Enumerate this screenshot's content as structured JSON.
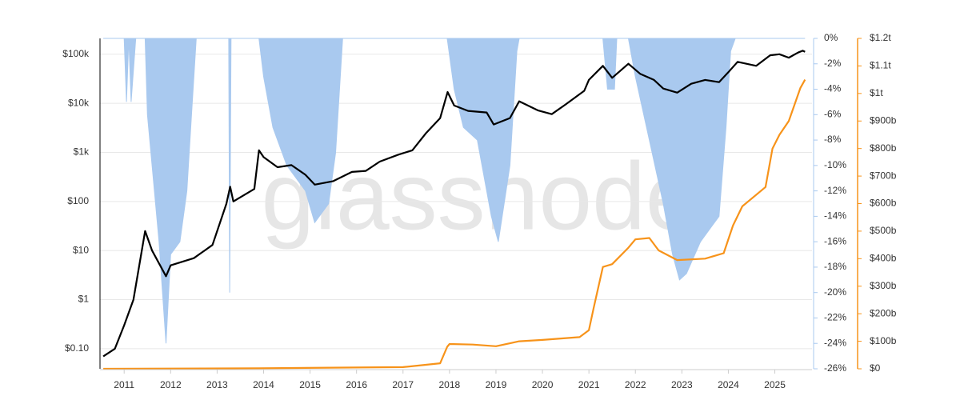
{
  "chart_data": {
    "type": "line",
    "watermark": "glassnode",
    "grid": true,
    "xlim": [
      2010.48,
      2025.8
    ],
    "xticks": [
      2011,
      2012,
      2013,
      2014,
      2015,
      2016,
      2017,
      2018,
      2019,
      2020,
      2021,
      2022,
      2023,
      2024,
      2025
    ],
    "ylog": true,
    "ylim": [
      0.039,
      210000
    ],
    "yticks": [
      {
        "value": 0.1,
        "label": "$0.10"
      },
      {
        "value": 1,
        "label": "$1"
      },
      {
        "value": 10,
        "label": "$10"
      },
      {
        "value": 100,
        "label": "$100"
      },
      {
        "value": 1000,
        "label": "$1k"
      },
      {
        "value": 10000,
        "label": "$10k"
      },
      {
        "value": 100000,
        "label": "$100k"
      }
    ],
    "y2lim": [
      -26,
      0
    ],
    "y2ticks": [
      {
        "value": 0,
        "label": "0%"
      },
      {
        "value": -2,
        "label": "-2%"
      },
      {
        "value": -4,
        "label": "-4%"
      },
      {
        "value": -6,
        "label": "-6%"
      },
      {
        "value": -8,
        "label": "-8%"
      },
      {
        "value": -10,
        "label": "-10%"
      },
      {
        "value": -12,
        "label": "-12%"
      },
      {
        "value": -14,
        "label": "-14%"
      },
      {
        "value": -16,
        "label": "-16%"
      },
      {
        "value": -18,
        "label": "-18%"
      },
      {
        "value": -20,
        "label": "-20%"
      },
      {
        "value": -22,
        "label": "-22%"
      },
      {
        "value": -24,
        "label": "-24%"
      },
      {
        "value": -26,
        "label": "-26%"
      }
    ],
    "y3lim": [
      0,
      1200000000000
    ],
    "y3ticks": [
      {
        "value": 0,
        "label": "$0"
      },
      {
        "value": 100000000000,
        "label": "$100b"
      },
      {
        "value": 200000000000,
        "label": "$200b"
      },
      {
        "value": 300000000000,
        "label": "$300b"
      },
      {
        "value": 400000000000,
        "label": "$400b"
      },
      {
        "value": 500000000000,
        "label": "$500b"
      },
      {
        "value": 600000000000,
        "label": "$600b"
      },
      {
        "value": 700000000000,
        "label": "$700b"
      },
      {
        "value": 800000000000,
        "label": "$800b"
      },
      {
        "value": 900000000000,
        "label": "$900b"
      },
      {
        "value": 1000000000000,
        "label": "$1t"
      },
      {
        "value": 1100000000000,
        "label": "$1.1t"
      },
      {
        "value": 1200000000000,
        "label": "$1.2t"
      }
    ],
    "series": [
      {
        "kind": "area",
        "axis": "y2",
        "color": "#a9c9ef",
        "x": [
          2010.55,
          2011.0,
          2011.05,
          2011.1,
          2011.15,
          2011.25,
          2011.45,
          2011.5,
          2011.6,
          2011.75,
          2011.9,
          2012.0,
          2012.2,
          2012.35,
          2012.45,
          2012.55,
          2013.25,
          2013.27,
          2013.3,
          2013.9,
          2014.0,
          2014.2,
          2014.5,
          2014.9,
          2015.1,
          2015.4,
          2015.55,
          2015.7,
          2017.95,
          2018.1,
          2018.3,
          2018.6,
          2018.9,
          2019.05,
          2019.3,
          2019.45,
          2019.5,
          2021.3,
          2021.4,
          2021.55,
          2021.6,
          2021.85,
          2022.0,
          2022.3,
          2022.6,
          2022.8,
          2022.95,
          2023.1,
          2023.4,
          2023.8,
          2023.95,
          2024.05,
          2024.15,
          2025.65
        ],
        "values": [
          0,
          0,
          -5,
          0,
          -5,
          0,
          0,
          -6,
          -10,
          -16,
          -24,
          -17,
          -16,
          -12,
          -6,
          0,
          0,
          -20,
          0,
          0,
          -3,
          -7,
          -10,
          -12,
          -14.5,
          -13,
          -9,
          0,
          0,
          -4,
          -7,
          -8,
          -14,
          -16,
          -10,
          -1,
          0,
          0,
          -4,
          -4,
          0,
          0,
          -3,
          -8,
          -13,
          -17,
          -19,
          -18.5,
          -16,
          -14,
          -7,
          -1,
          0,
          0
        ]
      },
      {
        "kind": "line",
        "axis": "y",
        "color": "#000000",
        "x": [
          2010.55,
          2010.8,
          2011.0,
          2011.2,
          2011.45,
          2011.6,
          2011.9,
          2012.0,
          2012.5,
          2012.9,
          2013.2,
          2013.28,
          2013.35,
          2013.8,
          2013.9,
          2014.0,
          2014.3,
          2014.6,
          2014.9,
          2015.1,
          2015.5,
          2015.9,
          2016.2,
          2016.5,
          2016.9,
          2017.2,
          2017.5,
          2017.8,
          2017.96,
          2018.1,
          2018.4,
          2018.8,
          2018.95,
          2019.3,
          2019.5,
          2019.9,
          2020.2,
          2020.5,
          2020.9,
          2021.0,
          2021.3,
          2021.5,
          2021.85,
          2022.1,
          2022.4,
          2022.6,
          2022.9,
          2023.2,
          2023.5,
          2023.8,
          2024.0,
          2024.2,
          2024.6,
          2024.9,
          2025.1,
          2025.3,
          2025.5,
          2025.6,
          2025.65
        ],
        "values": [
          0.07,
          0.1,
          0.3,
          1,
          25,
          10,
          3,
          5,
          7,
          13,
          90,
          200,
          100,
          180,
          1100,
          800,
          500,
          550,
          350,
          220,
          260,
          400,
          420,
          650,
          900,
          1100,
          2500,
          5000,
          17000,
          9000,
          7000,
          6500,
          3700,
          5000,
          11000,
          7200,
          6000,
          9500,
          18000,
          30000,
          58000,
          33000,
          64000,
          40000,
          30000,
          20000,
          16500,
          25000,
          30000,
          27000,
          43000,
          70000,
          58000,
          95000,
          100000,
          85000,
          108000,
          118000,
          112000
        ]
      },
      {
        "kind": "line",
        "axis": "y3",
        "color": "#f7931a",
        "x": [
          2010.55,
          2013.9,
          2017.0,
          2017.8,
          2017.95,
          2018.0,
          2018.5,
          2019.0,
          2019.5,
          2020.0,
          2020.8,
          2021.0,
          2021.1,
          2021.3,
          2021.5,
          2021.85,
          2022.0,
          2022.3,
          2022.5,
          2022.9,
          2023.5,
          2023.9,
          2024.1,
          2024.3,
          2024.8,
          2024.95,
          2025.1,
          2025.3,
          2025.55,
          2025.65
        ],
        "values": [
          0,
          2000000000,
          6000000000,
          20000000000,
          80000000000,
          90000000000,
          88000000000,
          82000000000,
          100000000000,
          105000000000,
          115000000000,
          140000000000,
          220000000000,
          370000000000,
          380000000000,
          440000000000,
          470000000000,
          475000000000,
          430000000000,
          395000000000,
          400000000000,
          420000000000,
          520000000000,
          590000000000,
          660000000000,
          800000000000,
          850000000000,
          900000000000,
          1020000000000,
          1050000000000
        ]
      }
    ]
  }
}
